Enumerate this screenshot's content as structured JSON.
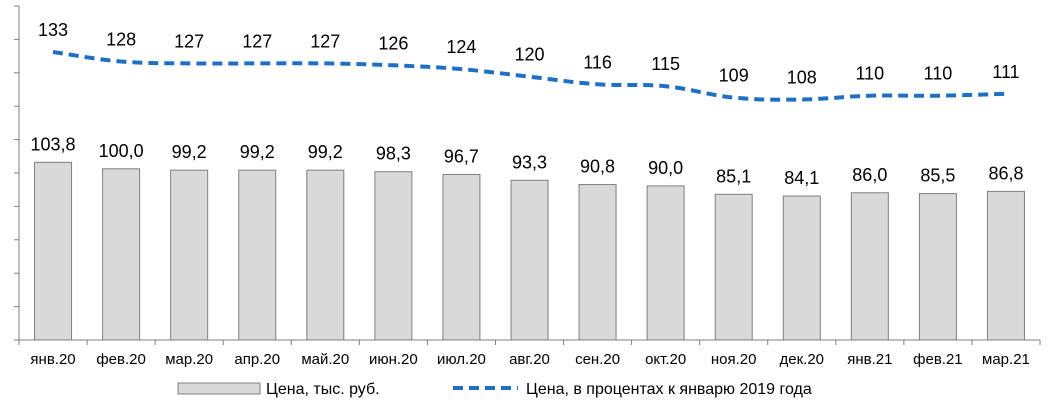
{
  "chart_data": {
    "type": "bar",
    "categories": [
      "янв.20",
      "фев.20",
      "мар.20",
      "апр.20",
      "май.20",
      "июн.20",
      "июл.20",
      "авг.20",
      "сен.20",
      "окт.20",
      "ноя.20",
      "дек.20",
      "янв.21",
      "фев.21",
      "мар.21"
    ],
    "series": [
      {
        "name": "Цена, тыс. руб.",
        "type": "bar",
        "values": [
          103.8,
          100.0,
          99.2,
          99.2,
          99.2,
          98.3,
          96.7,
          93.3,
          90.8,
          90.0,
          85.1,
          84.1,
          86.0,
          85.5,
          86.8
        ],
        "labels": [
          "103,8",
          "100,0",
          "99,2",
          "99,2",
          "99,2",
          "98,3",
          "96,7",
          "93,3",
          "90,8",
          "90,0",
          "85,1",
          "84,1",
          "86,0",
          "85,5",
          "86,8"
        ],
        "color": "#d9d9d9",
        "border_color": "#7f7f7f"
      },
      {
        "name": "Цена, в процентах к январю 2019 года",
        "type": "line",
        "values": [
          133,
          128,
          127,
          127,
          127,
          126,
          124,
          120,
          116,
          115,
          109,
          108,
          110,
          110,
          111
        ],
        "labels": [
          "133",
          "128",
          "127",
          "127",
          "127",
          "126",
          "124",
          "120",
          "116",
          "115",
          "109",
          "108",
          "110",
          "110",
          "111"
        ],
        "color": "#1f6fc5",
        "dashed": true
      }
    ],
    "grid": false,
    "legend_position": "bottom"
  }
}
